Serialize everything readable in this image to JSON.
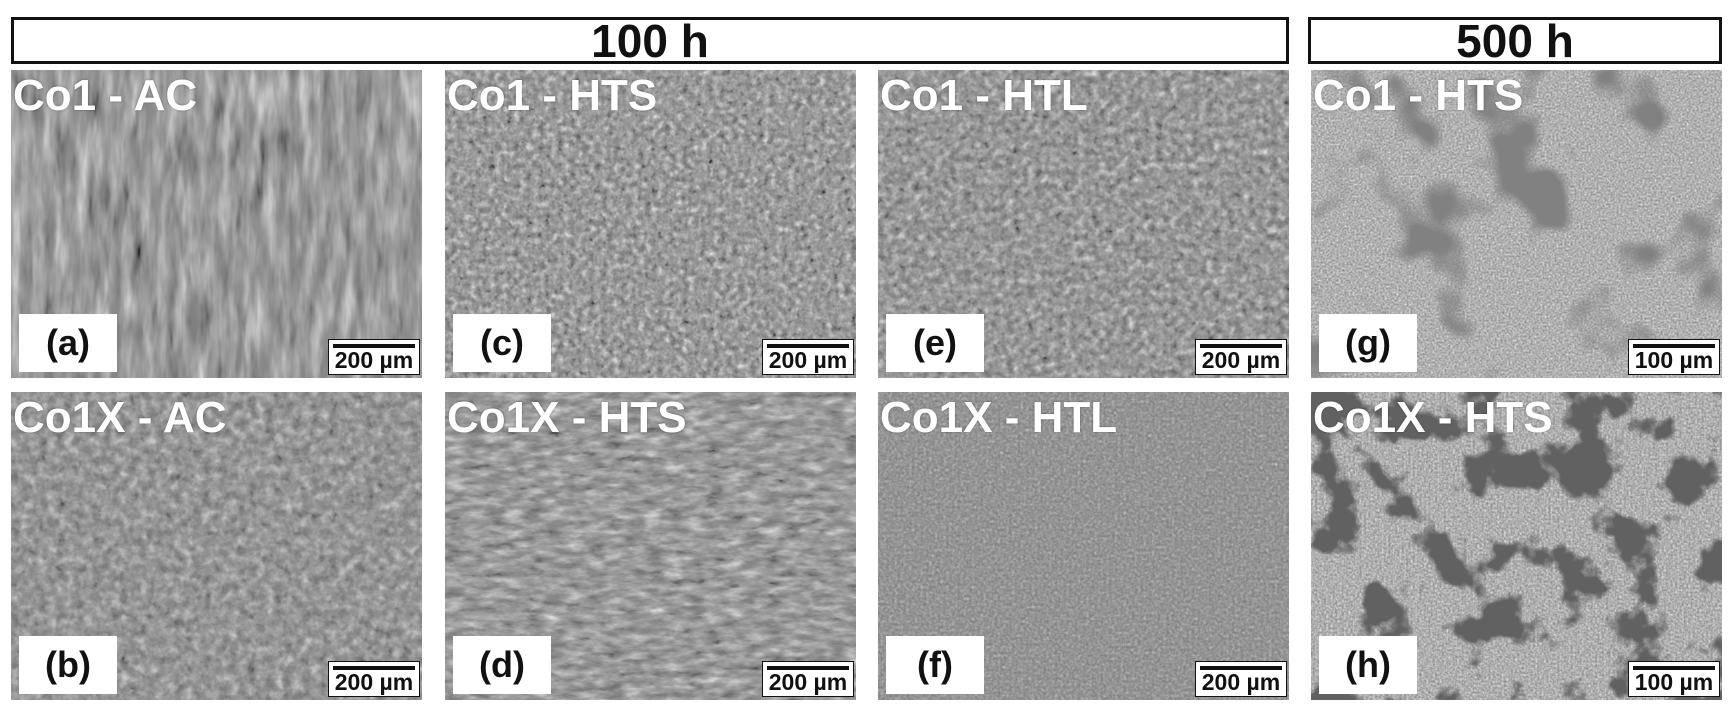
{
  "headers": {
    "left": "100 h",
    "right": "500 h"
  },
  "panels": {
    "a": {
      "title": "Co1 - AC",
      "letter": "(a)",
      "scale": "200 µm"
    },
    "b": {
      "title": "Co1X - AC",
      "letter": "(b)",
      "scale": "200 µm"
    },
    "c": {
      "title": "Co1 - HTS",
      "letter": "(c)",
      "scale": "200 µm"
    },
    "d": {
      "title": "Co1X - HTS",
      "letter": "(d)",
      "scale": "200 µm"
    },
    "e": {
      "title": "Co1 - HTL",
      "letter": "(e)",
      "scale": "200 µm"
    },
    "f": {
      "title": "Co1X - HTL",
      "letter": "(f)",
      "scale": "200 µm"
    },
    "g": {
      "title": "Co1 - HTS",
      "letter": "(g)",
      "scale": "100 µm"
    },
    "h": {
      "title": "Co1X - HTS",
      "letter": "(h)",
      "scale": "100 µm"
    }
  }
}
